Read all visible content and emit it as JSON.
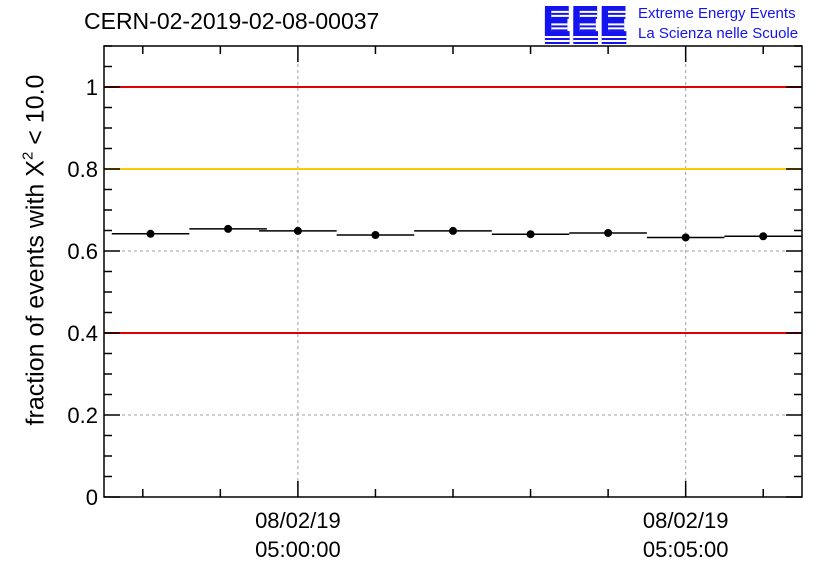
{
  "header": {
    "run_title": "CERN-02-2019-02-08-00037",
    "logo_mark": "EEE",
    "logo_line1": "Extreme Energy Events",
    "logo_line2": "La Scienza nelle Scuole"
  },
  "chart_data": {
    "type": "scatter",
    "title": "CERN-02-2019-02-08-00037",
    "ylabel_prefix": "fraction of events with X",
    "ylabel_sup": "2",
    "ylabel_suffix": " < 10.0",
    "xlabel": "",
    "ylim": [
      0,
      1.1
    ],
    "yticks": [
      0,
      0.2,
      0.4,
      0.6,
      0.8,
      1
    ],
    "ytick_labels": [
      "0",
      "0.2",
      "0.4",
      "0.6",
      "0.8",
      "1"
    ],
    "xlim_minutes": [
      -2.5,
      6.5
    ],
    "xticks": [
      {
        "minutes": 0,
        "date": "08/02/19",
        "time": "05:00:00"
      },
      {
        "minutes": 5,
        "date": "08/02/19",
        "time": "05:05:00"
      }
    ],
    "series": [
      {
        "x_minutes": [
          -1.9,
          -0.9,
          0.0,
          1.0,
          2.0,
          3.0,
          4.0,
          5.0,
          6.0
        ],
        "bin_width_minutes": 1.0,
        "y": [
          0.642,
          0.654,
          0.649,
          0.639,
          0.649,
          0.641,
          0.644,
          0.633,
          0.636
        ],
        "color": "#000000"
      }
    ],
    "reference_lines": [
      {
        "y": 1.0,
        "color": "#e00000"
      },
      {
        "y": 0.8,
        "color": "#ffc800"
      },
      {
        "y": 0.4,
        "color": "#e00000"
      }
    ],
    "grid": true
  }
}
